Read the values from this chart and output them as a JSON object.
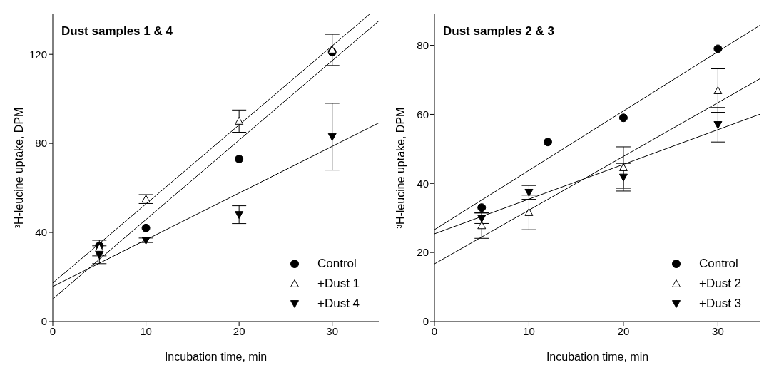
{
  "chart_data": [
    {
      "type": "scatter",
      "title": "Dust samples 1 & 4",
      "xlabel": "Incubation time, min",
      "ylabel": "³H-leucine uptake, DPM",
      "x": [
        5,
        10,
        20,
        30
      ],
      "xlim": [
        0,
        35
      ],
      "xticks": [
        0,
        10,
        20,
        30
      ],
      "ylim": [
        0,
        138
      ],
      "yticks": [
        0,
        40,
        80,
        120
      ],
      "grid": false,
      "legend": "bottom right",
      "series": [
        {
          "name": "Control",
          "color": "#000000",
          "marker": "circle",
          "values": [
            34,
            42,
            73,
            121
          ]
        },
        {
          "name": "+Dust 1",
          "color": "#000000",
          "marker": "triangle-open",
          "values": [
            33,
            55,
            90,
            122
          ],
          "errors": [
            3.5,
            2,
            5,
            7
          ]
        },
        {
          "name": "+Dust 4",
          "color": "#000000",
          "marker": "triangle-down",
          "values": [
            30,
            36.5,
            48,
            83
          ],
          "errors": [
            4,
            1,
            4,
            15
          ]
        },
        {
          "type": "line",
          "color": "#000000",
          "marker": "none",
          "x": [
            0,
            35
          ],
          "values": [
            10.1,
            135
          ]
        },
        {
          "type": "line",
          "color": "#000000",
          "marker": "none",
          "x": [
            0,
            34
          ],
          "values": [
            17.3,
            138
          ]
        },
        {
          "type": "line",
          "color": "#000000",
          "marker": "none",
          "x": [
            0,
            35
          ],
          "values": [
            15.7,
            89.2
          ]
        }
      ]
    },
    {
      "type": "scatter",
      "title": "Dust samples 2 & 3",
      "xlabel": "Incubation time, min",
      "ylabel": "³H-leucine uptake, DPM",
      "x": [
        5,
        10,
        20,
        30
      ],
      "xlim": [
        0,
        34.5
      ],
      "xticks": [
        0,
        10,
        20,
        30
      ],
      "ylim": [
        0,
        89
      ],
      "yticks": [
        0,
        20,
        40,
        60,
        80
      ],
      "grid": false,
      "legend": "bottom right",
      "series": [
        {
          "name": "Control",
          "color": "#000000",
          "marker": "circle",
          "x": [
            5,
            12,
            20,
            30
          ],
          "values": [
            33,
            52,
            59,
            79
          ]
        },
        {
          "name": "+Dust 2",
          "color": "#000000",
          "marker": "triangle-open",
          "values": [
            27.8,
            31.6,
            44.6,
            66.9
          ],
          "errors": [
            3.7,
            5,
            6,
            6.3
          ]
        },
        {
          "name": "+Dust 3",
          "color": "#000000",
          "marker": "triangle-down",
          "values": [
            29.9,
            37.4,
            41.8,
            57
          ],
          "errors": [
            1.5,
            2,
            4,
            5
          ]
        },
        {
          "type": "line",
          "color": "#000000",
          "marker": "none",
          "x": [
            0,
            34.5
          ],
          "values": [
            26.6,
            85.9
          ]
        },
        {
          "type": "line",
          "color": "#000000",
          "marker": "none",
          "x": [
            0,
            34.5
          ],
          "values": [
            16.7,
            70.4
          ]
        },
        {
          "type": "line",
          "color": "#000000",
          "marker": "none",
          "x": [
            0,
            34.5
          ],
          "values": [
            25.4,
            60.1
          ]
        }
      ]
    }
  ]
}
